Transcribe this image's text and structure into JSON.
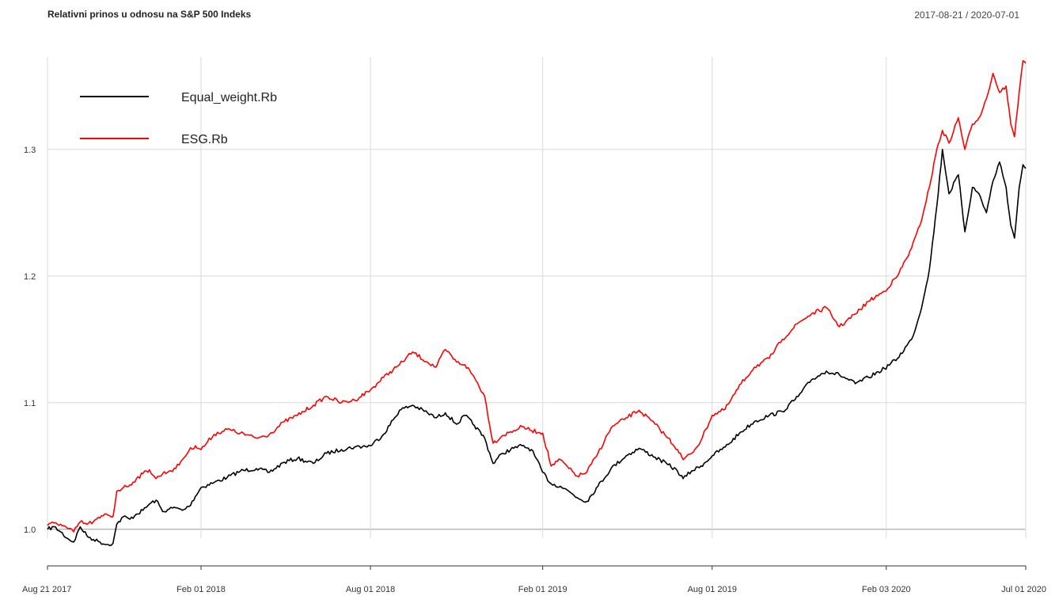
{
  "header": {
    "title": "Relativni prinos u odnosu na S&P 500 Indeks",
    "date_range": "2017-08-21 / 2020-07-01"
  },
  "chart_data": {
    "type": "line",
    "title": "Relativni prinos u odnosu na S&P 500 Indeks",
    "xlabel": "",
    "ylabel": "",
    "x_range": [
      "2017-08-21",
      "2020-07-01"
    ],
    "ylim": [
      0.993,
      1.373
    ],
    "y_ticks": [
      1.0,
      1.1,
      1.2,
      1.3
    ],
    "y_tick_labels": [
      "1.0",
      "1.1",
      "1.2",
      "1.3"
    ],
    "x_ticks": [
      "2017-08-21",
      "2018-02-01",
      "2018-08-01",
      "2019-02-01",
      "2019-08-01",
      "2020-02-03",
      "2020-07-01"
    ],
    "x_tick_labels": [
      "Aug 21 2017",
      "Feb 01 2018",
      "Aug 01 2018",
      "Feb 01 2019",
      "Aug 01 2019",
      "Feb 03 2020",
      "Jul 01 2020"
    ],
    "grid": true,
    "legend_position": "top-left",
    "series": [
      {
        "name": "Equal_weight.Rb",
        "color": "#000000",
        "points": [
          [
            "2017-08-21",
            1.0
          ],
          [
            "2017-08-28",
            1.002
          ],
          [
            "2017-09-04",
            0.998
          ],
          [
            "2017-09-11",
            0.993
          ],
          [
            "2017-09-18",
            0.99
          ],
          [
            "2017-09-25",
            1.002
          ],
          [
            "2017-10-02",
            0.995
          ],
          [
            "2017-10-09",
            0.992
          ],
          [
            "2017-10-16",
            0.99
          ],
          [
            "2017-10-23",
            0.988
          ],
          [
            "2017-10-30",
            0.989
          ],
          [
            "2017-11-03",
            1.004
          ],
          [
            "2017-11-10",
            1.01
          ],
          [
            "2017-11-17",
            1.008
          ],
          [
            "2017-11-24",
            1.012
          ],
          [
            "2017-12-01",
            1.015
          ],
          [
            "2017-12-08",
            1.02
          ],
          [
            "2017-12-15",
            1.023
          ],
          [
            "2017-12-22",
            1.014
          ],
          [
            "2017-12-29",
            1.016
          ],
          [
            "2018-01-05",
            1.017
          ],
          [
            "2018-01-12",
            1.015
          ],
          [
            "2018-01-19",
            1.018
          ],
          [
            "2018-01-26",
            1.026
          ],
          [
            "2018-02-01",
            1.033
          ],
          [
            "2018-02-15",
            1.037
          ],
          [
            "2018-03-01",
            1.041
          ],
          [
            "2018-03-15",
            1.046
          ],
          [
            "2018-04-01",
            1.048
          ],
          [
            "2018-04-15",
            1.045
          ],
          [
            "2018-05-01",
            1.053
          ],
          [
            "2018-05-15",
            1.056
          ],
          [
            "2018-06-01",
            1.052
          ],
          [
            "2018-06-15",
            1.06
          ],
          [
            "2018-07-01",
            1.063
          ],
          [
            "2018-07-15",
            1.065
          ],
          [
            "2018-08-01",
            1.066
          ],
          [
            "2018-08-15",
            1.075
          ],
          [
            "2018-09-01",
            1.094
          ],
          [
            "2018-09-15",
            1.098
          ],
          [
            "2018-10-01",
            1.092
          ],
          [
            "2018-10-10",
            1.088
          ],
          [
            "2018-10-20",
            1.092
          ],
          [
            "2018-11-01",
            1.083
          ],
          [
            "2018-11-10",
            1.09
          ],
          [
            "2018-11-20",
            1.082
          ],
          [
            "2018-12-01",
            1.072
          ],
          [
            "2018-12-10",
            1.052
          ],
          [
            "2018-12-20",
            1.06
          ],
          [
            "2019-01-01",
            1.064
          ],
          [
            "2019-01-10",
            1.066
          ],
          [
            "2019-01-20",
            1.063
          ],
          [
            "2019-02-01",
            1.045
          ],
          [
            "2019-02-10",
            1.036
          ],
          [
            "2019-02-20",
            1.034
          ],
          [
            "2019-03-01",
            1.03
          ],
          [
            "2019-03-10",
            1.025
          ],
          [
            "2019-03-20",
            1.022
          ],
          [
            "2019-04-01",
            1.034
          ],
          [
            "2019-04-15",
            1.048
          ],
          [
            "2019-05-01",
            1.058
          ],
          [
            "2019-05-15",
            1.064
          ],
          [
            "2019-06-01",
            1.057
          ],
          [
            "2019-06-15",
            1.051
          ],
          [
            "2019-06-25",
            1.046
          ],
          [
            "2019-07-01",
            1.04
          ],
          [
            "2019-07-10",
            1.046
          ],
          [
            "2019-07-20",
            1.05
          ],
          [
            "2019-08-01",
            1.058
          ],
          [
            "2019-08-15",
            1.065
          ],
          [
            "2019-09-01",
            1.077
          ],
          [
            "2019-09-15",
            1.085
          ],
          [
            "2019-10-01",
            1.09
          ],
          [
            "2019-10-15",
            1.093
          ],
          [
            "2019-11-01",
            1.105
          ],
          [
            "2019-11-15",
            1.118
          ],
          [
            "2019-12-01",
            1.125
          ],
          [
            "2019-12-15",
            1.122
          ],
          [
            "2020-01-01",
            1.115
          ],
          [
            "2020-01-15",
            1.12
          ],
          [
            "2020-02-01",
            1.127
          ],
          [
            "2020-02-15",
            1.135
          ],
          [
            "2020-03-01",
            1.15
          ],
          [
            "2020-03-10",
            1.17
          ],
          [
            "2020-03-20",
            1.205
          ],
          [
            "2020-03-28",
            1.255
          ],
          [
            "2020-04-03",
            1.3
          ],
          [
            "2020-04-10",
            1.265
          ],
          [
            "2020-04-20",
            1.28
          ],
          [
            "2020-04-27",
            1.235
          ],
          [
            "2020-05-05",
            1.27
          ],
          [
            "2020-05-12",
            1.265
          ],
          [
            "2020-05-20",
            1.25
          ],
          [
            "2020-05-27",
            1.275
          ],
          [
            "2020-06-03",
            1.29
          ],
          [
            "2020-06-10",
            1.27
          ],
          [
            "2020-06-15",
            1.24
          ],
          [
            "2020-06-19",
            1.23
          ],
          [
            "2020-06-24",
            1.27
          ],
          [
            "2020-06-28",
            1.288
          ],
          [
            "2020-07-01",
            1.285
          ]
        ]
      },
      {
        "name": "ESG.Rb",
        "color": "#ff0000",
        "points": [
          [
            "2017-08-21",
            1.003
          ],
          [
            "2017-08-28",
            1.005
          ],
          [
            "2017-09-04",
            1.004
          ],
          [
            "2017-09-11",
            1.001
          ],
          [
            "2017-09-18",
            0.998
          ],
          [
            "2017-09-25",
            1.006
          ],
          [
            "2017-10-02",
            1.004
          ],
          [
            "2017-10-09",
            1.006
          ],
          [
            "2017-10-16",
            1.009
          ],
          [
            "2017-10-23",
            1.012
          ],
          [
            "2017-10-30",
            1.01
          ],
          [
            "2017-11-03",
            1.03
          ],
          [
            "2017-11-10",
            1.033
          ],
          [
            "2017-11-17",
            1.035
          ],
          [
            "2017-11-24",
            1.04
          ],
          [
            "2017-12-01",
            1.044
          ],
          [
            "2017-12-08",
            1.047
          ],
          [
            "2017-12-15",
            1.04
          ],
          [
            "2017-12-22",
            1.044
          ],
          [
            "2017-12-29",
            1.046
          ],
          [
            "2018-01-05",
            1.048
          ],
          [
            "2018-01-12",
            1.055
          ],
          [
            "2018-01-19",
            1.062
          ],
          [
            "2018-01-26",
            1.066
          ],
          [
            "2018-02-01",
            1.063
          ],
          [
            "2018-02-15",
            1.075
          ],
          [
            "2018-03-01",
            1.079
          ],
          [
            "2018-03-15",
            1.076
          ],
          [
            "2018-04-01",
            1.072
          ],
          [
            "2018-04-15",
            1.075
          ],
          [
            "2018-05-01",
            1.085
          ],
          [
            "2018-05-15",
            1.09
          ],
          [
            "2018-06-01",
            1.098
          ],
          [
            "2018-06-15",
            1.105
          ],
          [
            "2018-07-01",
            1.1
          ],
          [
            "2018-07-15",
            1.102
          ],
          [
            "2018-08-01",
            1.11
          ],
          [
            "2018-08-15",
            1.12
          ],
          [
            "2018-09-01",
            1.13
          ],
          [
            "2018-09-15",
            1.14
          ],
          [
            "2018-10-01",
            1.132
          ],
          [
            "2018-10-10",
            1.128
          ],
          [
            "2018-10-20",
            1.142
          ],
          [
            "2018-11-01",
            1.132
          ],
          [
            "2018-11-10",
            1.13
          ],
          [
            "2018-11-20",
            1.12
          ],
          [
            "2018-12-01",
            1.105
          ],
          [
            "2018-12-10",
            1.068
          ],
          [
            "2018-12-20",
            1.074
          ],
          [
            "2019-01-01",
            1.078
          ],
          [
            "2019-01-10",
            1.081
          ],
          [
            "2019-01-20",
            1.078
          ],
          [
            "2019-02-01",
            1.076
          ],
          [
            "2019-02-10",
            1.05
          ],
          [
            "2019-02-20",
            1.055
          ],
          [
            "2019-03-01",
            1.048
          ],
          [
            "2019-03-10",
            1.042
          ],
          [
            "2019-03-20",
            1.045
          ],
          [
            "2019-04-01",
            1.06
          ],
          [
            "2019-04-15",
            1.08
          ],
          [
            "2019-05-01",
            1.088
          ],
          [
            "2019-05-15",
            1.094
          ],
          [
            "2019-06-01",
            1.083
          ],
          [
            "2019-06-15",
            1.072
          ],
          [
            "2019-06-25",
            1.063
          ],
          [
            "2019-07-01",
            1.055
          ],
          [
            "2019-07-10",
            1.06
          ],
          [
            "2019-07-20",
            1.07
          ],
          [
            "2019-08-01",
            1.09
          ],
          [
            "2019-08-15",
            1.095
          ],
          [
            "2019-09-01",
            1.115
          ],
          [
            "2019-09-15",
            1.128
          ],
          [
            "2019-10-01",
            1.135
          ],
          [
            "2019-10-15",
            1.15
          ],
          [
            "2019-11-01",
            1.163
          ],
          [
            "2019-11-15",
            1.17
          ],
          [
            "2019-12-01",
            1.175
          ],
          [
            "2019-12-15",
            1.16
          ],
          [
            "2020-01-01",
            1.17
          ],
          [
            "2020-01-15",
            1.18
          ],
          [
            "2020-02-01",
            1.188
          ],
          [
            "2020-02-15",
            1.2
          ],
          [
            "2020-03-01",
            1.222
          ],
          [
            "2020-03-10",
            1.24
          ],
          [
            "2020-03-20",
            1.27
          ],
          [
            "2020-03-28",
            1.3
          ],
          [
            "2020-04-03",
            1.315
          ],
          [
            "2020-04-10",
            1.305
          ],
          [
            "2020-04-20",
            1.325
          ],
          [
            "2020-04-27",
            1.3
          ],
          [
            "2020-05-05",
            1.32
          ],
          [
            "2020-05-12",
            1.325
          ],
          [
            "2020-05-20",
            1.34
          ],
          [
            "2020-05-27",
            1.36
          ],
          [
            "2020-06-03",
            1.345
          ],
          [
            "2020-06-10",
            1.35
          ],
          [
            "2020-06-15",
            1.32
          ],
          [
            "2020-06-19",
            1.31
          ],
          [
            "2020-06-24",
            1.345
          ],
          [
            "2020-06-28",
            1.37
          ],
          [
            "2020-07-01",
            1.368
          ]
        ]
      }
    ]
  }
}
